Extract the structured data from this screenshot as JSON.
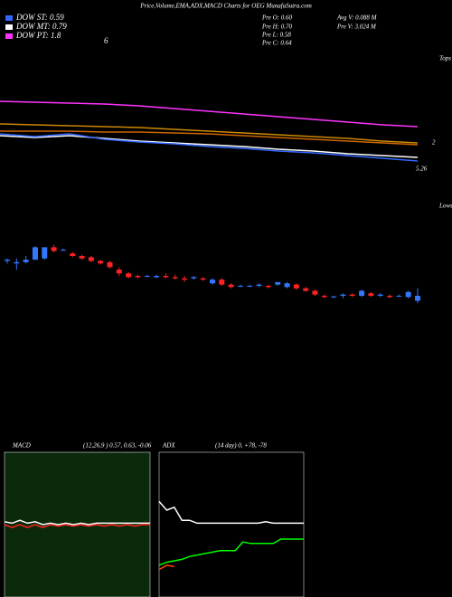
{
  "header": {
    "title": "Price,Volume,EMA,ADX,MACD Charts for OEG MunafaSutra.com"
  },
  "legend": [
    {
      "label": "DOW ST: 0.59",
      "color": "#3366ff"
    },
    {
      "label": "DOW MT: 0.79",
      "color": "#ffffff"
    },
    {
      "label": "DOW PT: 1.8",
      "color": "#ff33ff"
    }
  ],
  "legend_note": "6",
  "stats": [
    "Pre O: 0.60",
    "Pre H: 0.70",
    "Pre L: 0.58",
    "Pre C: 0.64",
    "Avg V: 0.088 M",
    "Pre V: 3.024 M"
  ],
  "annotations": {
    "tops": "Tops",
    "level": "2",
    "price": "5.26",
    "lows": "Lows"
  },
  "chart_data": [
    {
      "type": "line",
      "ylim": [
        0,
        100
      ],
      "series": [
        {
          "color": "#ff33ff",
          "values": [
            88,
            87,
            86,
            85,
            83,
            80,
            77,
            74,
            71,
            68,
            65,
            62,
            60
          ]
        },
        {
          "color": "#cc8800",
          "values": [
            63,
            62,
            61,
            60,
            59,
            57,
            55,
            53,
            51,
            49,
            47,
            44,
            42
          ]
        },
        {
          "color": "#cc6600",
          "values": [
            55,
            55,
            55,
            54,
            54,
            53,
            52,
            50,
            48,
            46,
            44,
            42,
            40
          ]
        },
        {
          "color": "#ffffff",
          "values": [
            50,
            48,
            50,
            47,
            44,
            42,
            40,
            38,
            35,
            33,
            30,
            28,
            26
          ]
        },
        {
          "color": "#3366ff",
          "values": [
            52,
            49,
            52,
            46,
            43,
            41,
            38,
            36,
            33,
            31,
            28,
            25,
            22
          ]
        }
      ]
    },
    {
      "type": "candlestick",
      "ylim": [
        0.4,
        1.2
      ],
      "up_color": "#3377ff",
      "down_color": "#ff2222",
      "open": [
        0.92,
        0.9,
        0.91,
        0.93,
        0.94,
        1.03,
        1.01,
        0.98,
        0.96,
        0.95,
        0.92,
        0.91,
        0.85,
        0.82,
        0.8,
        0.8,
        0.79,
        0.8,
        0.79,
        0.78,
        0.78,
        0.78,
        0.74,
        0.77,
        0.73,
        0.72,
        0.72,
        0.72,
        0.72,
        0.73,
        0.71,
        0.73,
        0.7,
        0.68,
        0.64,
        0.63,
        0.64,
        0.65,
        0.64,
        0.66,
        0.64,
        0.64,
        0.64,
        0.63,
        0.6
      ],
      "high": [
        0.94,
        0.94,
        0.96,
        1.04,
        1.03,
        1.05,
        1.02,
        0.99,
        0.97,
        0.96,
        0.93,
        0.92,
        0.87,
        0.83,
        0.81,
        0.81,
        0.81,
        0.82,
        0.81,
        0.8,
        0.8,
        0.79,
        0.78,
        0.78,
        0.74,
        0.73,
        0.73,
        0.74,
        0.73,
        0.75,
        0.75,
        0.74,
        0.71,
        0.69,
        0.65,
        0.64,
        0.66,
        0.66,
        0.69,
        0.67,
        0.66,
        0.65,
        0.65,
        0.68,
        0.7
      ],
      "low": [
        0.9,
        0.85,
        0.9,
        0.93,
        0.93,
        0.99,
        1.0,
        0.95,
        0.93,
        0.91,
        0.89,
        0.86,
        0.8,
        0.78,
        0.78,
        0.79,
        0.78,
        0.78,
        0.77,
        0.75,
        0.77,
        0.76,
        0.73,
        0.72,
        0.7,
        0.71,
        0.71,
        0.71,
        0.7,
        0.72,
        0.7,
        0.69,
        0.67,
        0.64,
        0.62,
        0.62,
        0.62,
        0.63,
        0.63,
        0.63,
        0.63,
        0.62,
        0.63,
        0.62,
        0.58
      ],
      "close": [
        0.93,
        0.91,
        0.93,
        1.03,
        1.03,
        1.0,
        1.01,
        0.96,
        0.94,
        0.92,
        0.9,
        0.87,
        0.82,
        0.79,
        0.79,
        0.8,
        0.8,
        0.79,
        0.78,
        0.77,
        0.79,
        0.77,
        0.77,
        0.73,
        0.71,
        0.72,
        0.72,
        0.73,
        0.71,
        0.75,
        0.74,
        0.7,
        0.68,
        0.65,
        0.63,
        0.635,
        0.65,
        0.64,
        0.68,
        0.64,
        0.65,
        0.63,
        0.64,
        0.67,
        0.64
      ]
    },
    {
      "type": "line",
      "title": "MACD",
      "subtitle": "(12,26,9 ) 0.57, 0.63, -0.06",
      "ylim": [
        -5,
        5
      ],
      "series": [
        {
          "color": "#ffffff",
          "values": [
            0.2,
            0.1,
            0.3,
            0.1,
            0.2,
            0,
            0.1,
            0,
            0.1,
            0,
            0.1,
            0,
            0.1,
            0.1,
            0.1,
            0.1,
            0.1,
            0.1,
            0.1,
            0.1
          ]
        },
        {
          "color": "#ff2222",
          "values": [
            0,
            -0.2,
            0,
            -0.2,
            0,
            -0.2,
            0,
            -0.1,
            0,
            -0.1,
            0,
            -0.1,
            0,
            -0.1,
            0,
            -0.1,
            0,
            -0.1,
            0,
            0
          ]
        }
      ]
    },
    {
      "type": "line",
      "title": "ADX",
      "subtitle": "(14 day) 0, +78, -78",
      "ylim": [
        0,
        100
      ],
      "series": [
        {
          "color": "#ffffff",
          "values": [
            66,
            60,
            62,
            53,
            53,
            51,
            51,
            51,
            51,
            51,
            51,
            51,
            51,
            51,
            52,
            51,
            51,
            51,
            51,
            51
          ]
        },
        {
          "color": "#00ff00",
          "values": [
            22,
            24,
            25,
            26,
            28,
            29,
            30,
            31,
            32,
            32,
            32,
            38,
            37,
            37,
            37,
            37,
            40,
            40,
            40,
            40
          ]
        },
        {
          "color": "#ff4400",
          "values": [
            19,
            22,
            21,
            null,
            null,
            null,
            null,
            null,
            null,
            null,
            null,
            null,
            null,
            null,
            null,
            null,
            null,
            null,
            null,
            null
          ]
        }
      ]
    }
  ]
}
